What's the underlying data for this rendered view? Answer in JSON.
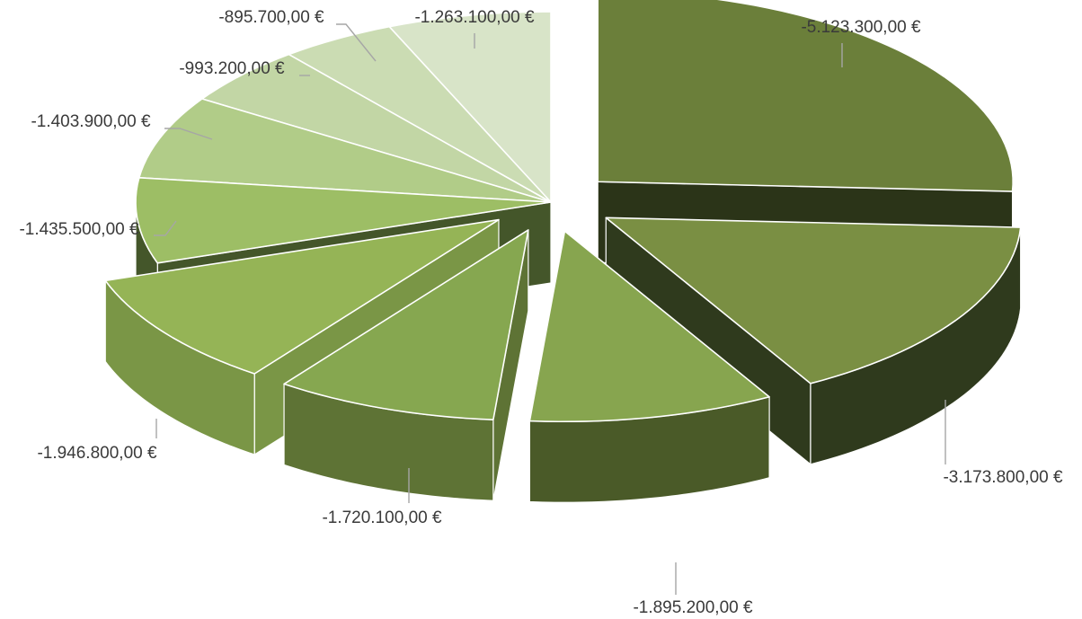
{
  "chart_data": {
    "type": "pie",
    "style": "3d-exploded",
    "legend": "none",
    "values": [
      -5123300,
      -3173800,
      -1895200,
      -1720100,
      -1946800,
      -1435500,
      -1403900,
      -993200,
      -895700,
      -1263100
    ],
    "labels": [
      "-5.123.300,00 €",
      "-3.173.800,00 €",
      "-1.895.200,00 €",
      "-1.720.100,00 €",
      "-1.946.800,00 €",
      "-1.435.500,00 €",
      "-1.403.900,00 €",
      "-993.200,00 €",
      "-895.700,00 €",
      "-1.263.100,00 €"
    ],
    "colors": [
      "#6b7f3a",
      "#7a8f43",
      "#87a54f",
      "#86a750",
      "#95b456",
      "#9dbe65",
      "#b1cc88",
      "#c2d6a5",
      "#cbdcb3",
      "#d8e4c8"
    ],
    "side_colors": [
      "#2b3418",
      "#2f3a1d",
      "#4a5a28",
      "#5e7335",
      "#7a9646",
      "#44562a",
      "#6f8a48",
      "#8aa36a",
      "#98ad7a",
      "#a6b98d"
    ]
  }
}
